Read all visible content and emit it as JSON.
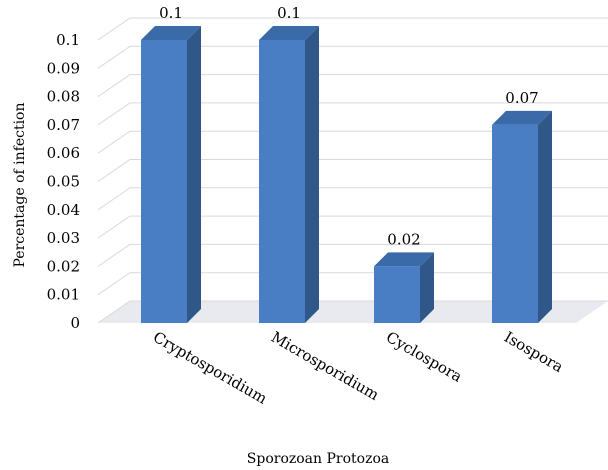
{
  "chart_data": {
    "type": "bar",
    "title": "",
    "xlabel": "Sporozoan Protozoa",
    "ylabel": "Percentage of infection",
    "categories": [
      "Cryptosporidium",
      "Microsporidium",
      "Cyclospora",
      "Isospora"
    ],
    "values": [
      0.1,
      0.1,
      0.02,
      0.07
    ],
    "data_labels": [
      "0.1",
      "0.1",
      "0.02",
      "0.07"
    ],
    "ylim": [
      0,
      0.1
    ],
    "yticks": [
      "0",
      "0.01",
      "0.02",
      "0.03",
      "0.04",
      "0.05",
      "0.06",
      "0.07",
      "0.08",
      "0.09",
      "0.1"
    ],
    "grid": true,
    "style": "3d-column",
    "colors": {
      "bar_front": "#4a7ec4",
      "bar_side": "#2f5787",
      "bar_top": "#3b6aa8",
      "grid": "#d9d9d9",
      "floor": "#e8eaef"
    }
  }
}
